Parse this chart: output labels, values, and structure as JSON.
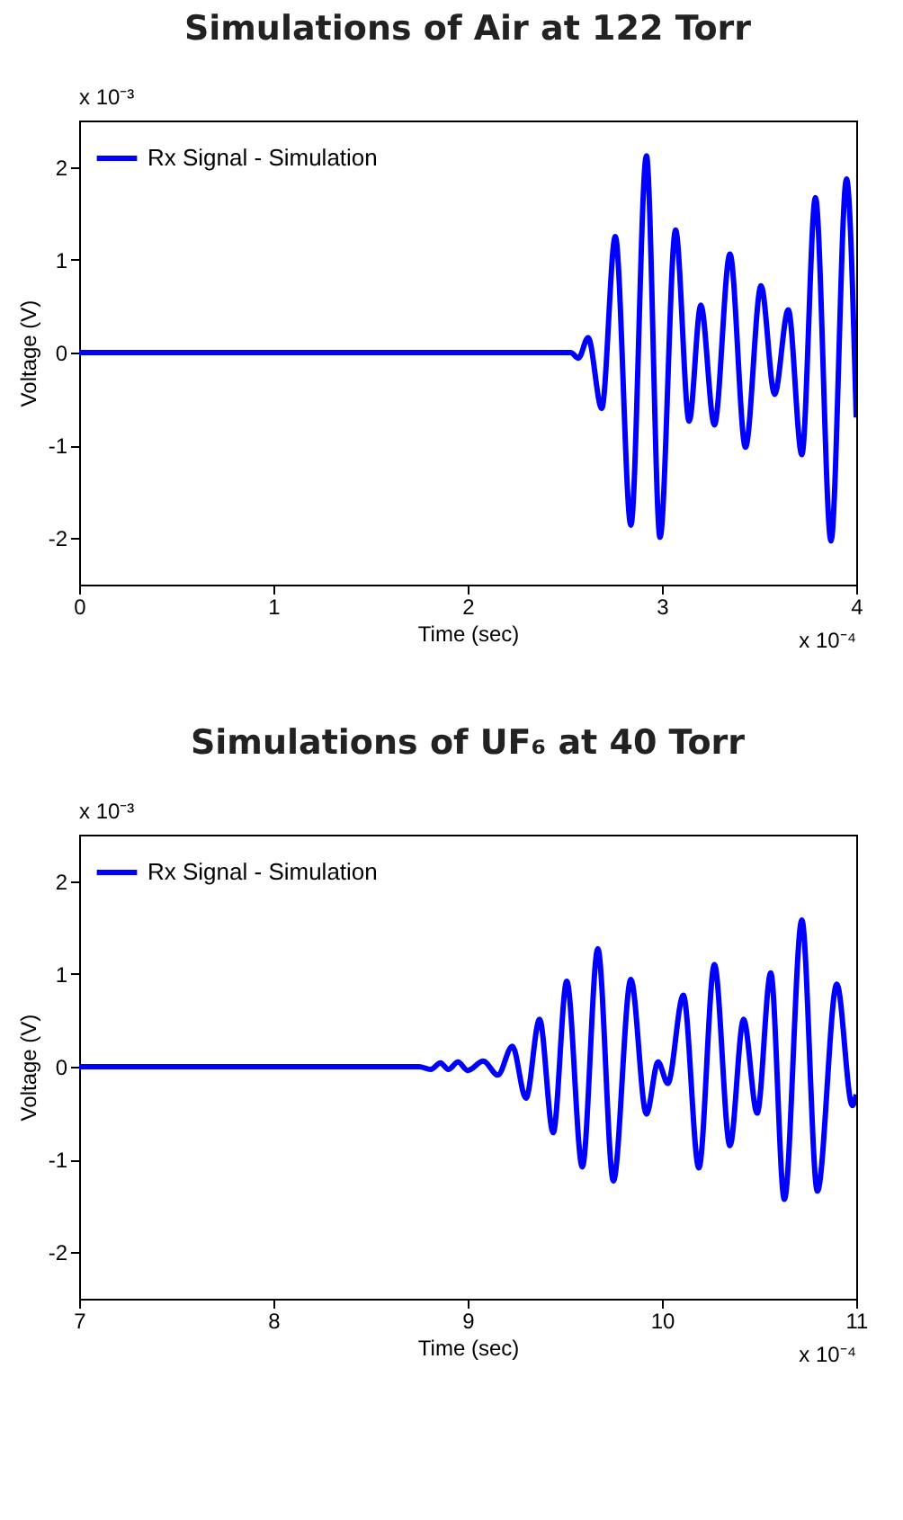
{
  "chart_data": [
    {
      "type": "line",
      "title": "Simulations of Air at 122 Torr",
      "xlabel": "Time (sec)",
      "ylabel": "Voltage (V)",
      "annotations": [
        "x 10⁻³",
        "x 10⁻⁴"
      ],
      "x": [
        0,
        2.53,
        2.57,
        2.62,
        2.69,
        2.76,
        2.84,
        2.92,
        2.99,
        3.07,
        3.14,
        3.2,
        3.27,
        3.35,
        3.43,
        3.51,
        3.58,
        3.65,
        3.72,
        3.79,
        3.87,
        3.95,
        4.0
      ],
      "series": [
        {
          "name": "Rx Signal - Simulation",
          "color": "#0000ff",
          "values": [
            0,
            0,
            -0.06,
            0.16,
            -0.6,
            1.25,
            -1.86,
            2.12,
            -1.99,
            1.32,
            -0.74,
            0.51,
            -0.78,
            1.06,
            -1.02,
            0.72,
            -0.45,
            0.46,
            -1.1,
            1.67,
            -2.03,
            1.87,
            -0.7
          ]
        }
      ],
      "xlim": [
        0,
        4
      ],
      "xticks": [
        0,
        1,
        2,
        3,
        4
      ],
      "ylim": [
        -2.5,
        2.5
      ],
      "yticks": [
        -2,
        -1,
        0,
        1,
        2
      ],
      "grid": false,
      "legend": "top left"
    },
    {
      "type": "line",
      "title": "Simulations of UF₆ at 40 Torr",
      "xlabel": "Time (sec)",
      "ylabel": "Voltage (V)",
      "annotations": [
        "x 10⁻³",
        "x 10⁻⁴"
      ],
      "x": [
        7,
        8.75,
        8.81,
        8.86,
        8.9,
        8.95,
        9.0,
        9.08,
        9.155,
        9.23,
        9.3,
        9.37,
        9.44,
        9.51,
        9.59,
        9.67,
        9.75,
        9.84,
        9.92,
        9.98,
        10.03,
        10.11,
        10.19,
        10.27,
        10.35,
        10.42,
        10.49,
        10.56,
        10.63,
        10.72,
        10.8,
        10.9,
        10.98,
        11.0
      ],
      "series": [
        {
          "name": "Rx Signal - Simulation",
          "color": "#0000ff",
          "values": [
            0,
            0,
            -0.03,
            0.04,
            -0.03,
            0.05,
            -0.04,
            0.06,
            -0.09,
            0.22,
            -0.34,
            0.51,
            -0.71,
            0.92,
            -1.08,
            1.27,
            -1.23,
            0.94,
            -0.51,
            0.05,
            -0.18,
            0.77,
            -1.09,
            1.1,
            -0.85,
            0.51,
            -0.5,
            1.01,
            -1.43,
            1.58,
            -1.34,
            0.89,
            -0.42,
            -0.3
          ]
        }
      ],
      "xlim": [
        7,
        11
      ],
      "xticks": [
        7,
        8,
        9,
        10,
        11
      ],
      "ylim": [
        -2.5,
        2.5
      ],
      "yticks": [
        -2,
        -1,
        0,
        1,
        2
      ],
      "grid": false,
      "legend": "top left"
    }
  ]
}
